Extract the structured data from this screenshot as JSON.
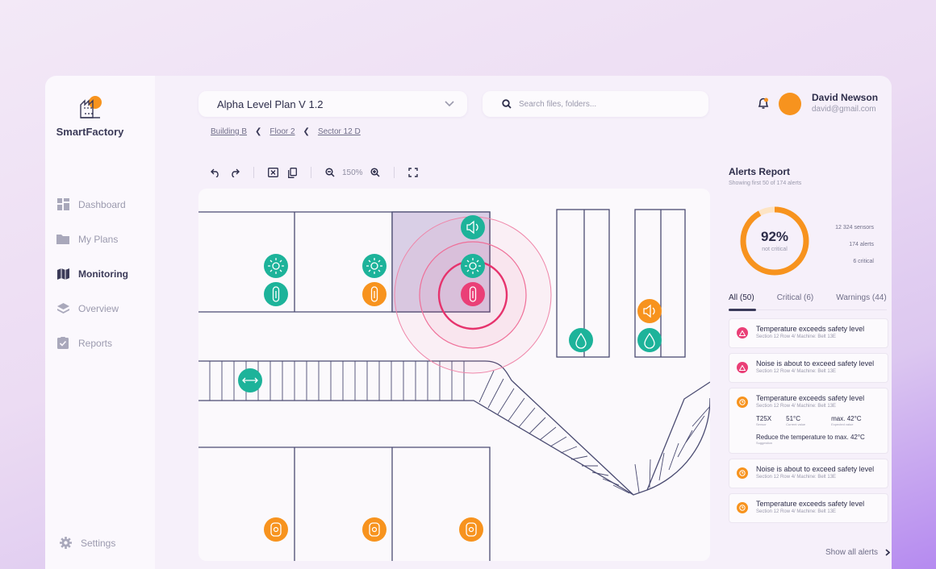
{
  "brand": {
    "name": "SmartFactory",
    "logo_icon": "factory-icon",
    "accent": "#f7931e"
  },
  "sidebar": {
    "items": [
      {
        "label": "Dashboard",
        "icon": "dashboard-icon",
        "active": false
      },
      {
        "label": "My Plans",
        "icon": "folder-icon",
        "active": false
      },
      {
        "label": "Monitoring",
        "icon": "map-icon",
        "active": true
      },
      {
        "label": "Overview",
        "icon": "layers-icon",
        "active": false
      },
      {
        "label": "Reports",
        "icon": "clipboard-check-icon",
        "active": false
      }
    ],
    "settings_label": "Settings"
  },
  "header": {
    "plan_select": "Alpha Level Plan V 1.2",
    "search_placeholder": "Search files, folders...",
    "breadcrumb": [
      "Building B",
      "Floor 2",
      "Sector 12 D"
    ]
  },
  "user": {
    "name": "David Newson",
    "email": "david@gmail.com"
  },
  "toolbar": {
    "zoom": "150%"
  },
  "alerts": {
    "title": "Alerts Report",
    "subtitle": "Showing first 50 of 174 alerts",
    "percent": "92%",
    "percent_label": "not critical",
    "percent_value": 0.92,
    "stats": [
      "12 324 sensors",
      "174 alerts",
      "6 critical"
    ],
    "tabs": [
      "All (50)",
      "Critical (6)",
      "Warnings (44)"
    ],
    "items": [
      {
        "title": "Temperature exceeds safety level",
        "sub": "Section 12 Row 4/ Machine: Belt 13E",
        "level": "critical"
      },
      {
        "title": "Noise is about to exceed safety level",
        "sub": "Section 12 Row 4/ Machine: Belt 13E",
        "level": "critical"
      },
      {
        "title": "Temperature exceeds safety level",
        "sub": "Section 12 Row 4/ Machine: Belt 13E",
        "level": "warning",
        "metrics": [
          {
            "value": "T25X",
            "label": "Sensor"
          },
          {
            "value": "51°C",
            "label": "Current value"
          },
          {
            "value": "max. 42°C",
            "label": "Expected value"
          }
        ],
        "suggestion": "Reduce the temperature to max. 42°C",
        "suggestion_label": "Suggestion"
      },
      {
        "title": "Noise is about to exceed safety level",
        "sub": "Section 12 Row 4/ Machine: Belt 13E",
        "level": "warning"
      },
      {
        "title": "Temperature exceeds safety level",
        "sub": "Section 12 Row 4/ Machine: Belt 13E",
        "level": "warning"
      }
    ],
    "show_all": "Show all alerts"
  },
  "colors": {
    "teal": "#1db39a",
    "orange": "#f7931e",
    "pink": "#ea3f77",
    "navy": "#3c3d63"
  }
}
